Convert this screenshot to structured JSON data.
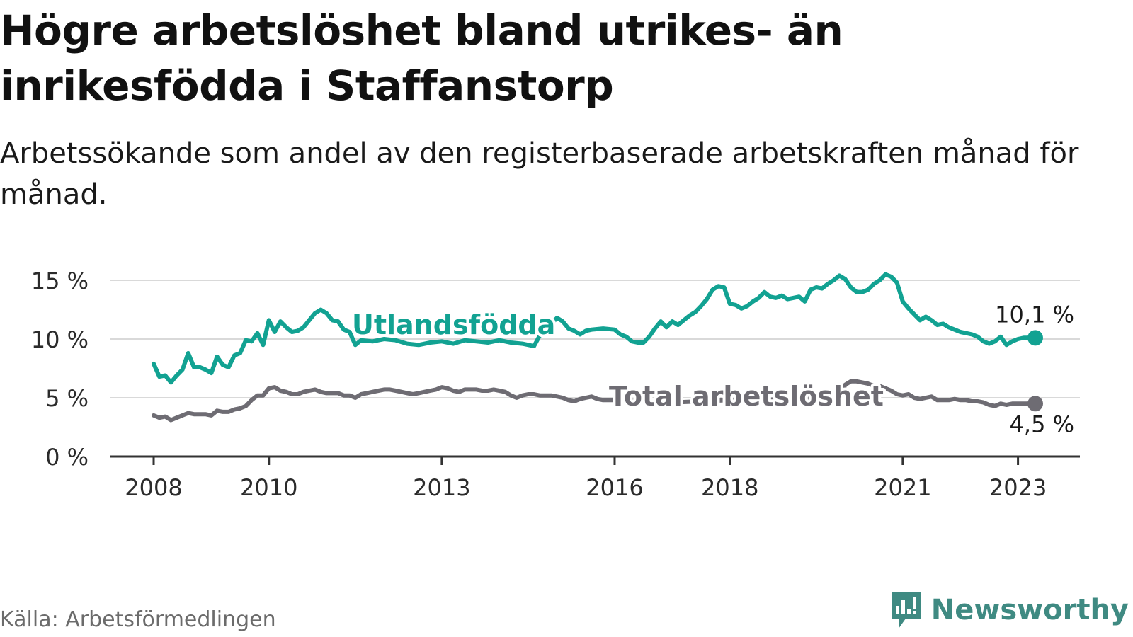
{
  "title": "Högre arbetslöshet bland utrikes- än inrikesfödda i Staffanstorp",
  "subtitle": "Arbetssökande som andel av den registerbaserade arbetskraften månad för månad.",
  "source": "Källa: Arbetsförmedlingen",
  "brand": "Newsworthy",
  "colors": {
    "utlandsfodda": "#12a292",
    "total": "#6e6c73",
    "grid": "#d9d9d9",
    "axis": "#333333"
  },
  "chart_data": {
    "type": "line",
    "xlim": [
      2008.0,
      2023.3
    ],
    "ylim": [
      0,
      15
    ],
    "y_ticks": [
      {
        "value": 0,
        "label": "0 %"
      },
      {
        "value": 5,
        "label": "5 %"
      },
      {
        "value": 10,
        "label": "10 %"
      },
      {
        "value": 15,
        "label": "15 %"
      }
    ],
    "x_ticks": [
      {
        "value": 2008,
        "label": "2008"
      },
      {
        "value": 2010,
        "label": "2010"
      },
      {
        "value": 2013,
        "label": "2013"
      },
      {
        "value": 2016,
        "label": "2016"
      },
      {
        "value": 2018,
        "label": "2018"
      },
      {
        "value": 2021,
        "label": "2021"
      },
      {
        "value": 2023,
        "label": "2023"
      }
    ],
    "grid": true,
    "series": [
      {
        "name": "Utlandsfödda",
        "end_label": "10,1 %",
        "points": [
          [
            2008.0,
            7.9
          ],
          [
            2008.1,
            6.8
          ],
          [
            2008.2,
            6.9
          ],
          [
            2008.3,
            6.3
          ],
          [
            2008.4,
            6.9
          ],
          [
            2008.5,
            7.4
          ],
          [
            2008.6,
            8.8
          ],
          [
            2008.7,
            7.6
          ],
          [
            2008.8,
            7.6
          ],
          [
            2008.9,
            7.4
          ],
          [
            2009.0,
            7.1
          ],
          [
            2009.1,
            8.5
          ],
          [
            2009.2,
            7.8
          ],
          [
            2009.3,
            7.6
          ],
          [
            2009.4,
            8.6
          ],
          [
            2009.5,
            8.8
          ],
          [
            2009.6,
            9.9
          ],
          [
            2009.7,
            9.8
          ],
          [
            2009.8,
            10.5
          ],
          [
            2009.9,
            9.5
          ],
          [
            2010.0,
            11.6
          ],
          [
            2010.1,
            10.6
          ],
          [
            2010.2,
            11.5
          ],
          [
            2010.3,
            11.0
          ],
          [
            2010.4,
            10.6
          ],
          [
            2010.5,
            10.7
          ],
          [
            2010.6,
            11.0
          ],
          [
            2010.7,
            11.6
          ],
          [
            2010.8,
            12.2
          ],
          [
            2010.9,
            12.5
          ],
          [
            2011.0,
            12.2
          ],
          [
            2011.1,
            11.6
          ],
          [
            2011.2,
            11.5
          ],
          [
            2011.3,
            10.8
          ],
          [
            2011.4,
            10.6
          ],
          [
            2011.5,
            9.5
          ],
          [
            2011.6,
            9.9
          ],
          [
            2011.8,
            9.8
          ],
          [
            2012.0,
            10.0
          ],
          [
            2012.2,
            9.9
          ],
          [
            2012.4,
            9.6
          ],
          [
            2012.6,
            9.5
          ],
          [
            2012.8,
            9.7
          ],
          [
            2013.0,
            9.8
          ],
          [
            2013.2,
            9.6
          ],
          [
            2013.4,
            9.9
          ],
          [
            2013.6,
            9.8
          ],
          [
            2013.8,
            9.7
          ],
          [
            2014.0,
            9.9
          ],
          [
            2014.2,
            9.7
          ],
          [
            2014.4,
            9.6
          ],
          [
            2014.6,
            9.4
          ],
          [
            2014.8,
            11.2
          ],
          [
            2014.9,
            11.3
          ],
          [
            2015.0,
            11.8
          ],
          [
            2015.1,
            11.5
          ],
          [
            2015.2,
            10.9
          ],
          [
            2015.3,
            10.7
          ],
          [
            2015.4,
            10.4
          ],
          [
            2015.5,
            10.7
          ],
          [
            2015.6,
            10.8
          ],
          [
            2015.8,
            10.9
          ],
          [
            2016.0,
            10.8
          ],
          [
            2016.1,
            10.4
          ],
          [
            2016.2,
            10.2
          ],
          [
            2016.3,
            9.8
          ],
          [
            2016.4,
            9.7
          ],
          [
            2016.5,
            9.7
          ],
          [
            2016.6,
            10.2
          ],
          [
            2016.7,
            10.9
          ],
          [
            2016.8,
            11.5
          ],
          [
            2016.9,
            11.0
          ],
          [
            2017.0,
            11.5
          ],
          [
            2017.1,
            11.2
          ],
          [
            2017.2,
            11.6
          ],
          [
            2017.3,
            12.0
          ],
          [
            2017.4,
            12.3
          ],
          [
            2017.5,
            12.8
          ],
          [
            2017.6,
            13.4
          ],
          [
            2017.7,
            14.2
          ],
          [
            2017.8,
            14.5
          ],
          [
            2017.9,
            14.4
          ],
          [
            2018.0,
            13.0
          ],
          [
            2018.1,
            12.9
          ],
          [
            2018.2,
            12.6
          ],
          [
            2018.3,
            12.8
          ],
          [
            2018.4,
            13.2
          ],
          [
            2018.5,
            13.5
          ],
          [
            2018.6,
            14.0
          ],
          [
            2018.7,
            13.6
          ],
          [
            2018.8,
            13.5
          ],
          [
            2018.9,
            13.7
          ],
          [
            2019.0,
            13.4
          ],
          [
            2019.1,
            13.5
          ],
          [
            2019.2,
            13.6
          ],
          [
            2019.3,
            13.2
          ],
          [
            2019.4,
            14.2
          ],
          [
            2019.5,
            14.4
          ],
          [
            2019.6,
            14.3
          ],
          [
            2019.7,
            14.7
          ],
          [
            2019.8,
            15.0
          ],
          [
            2019.9,
            15.4
          ],
          [
            2020.0,
            15.1
          ],
          [
            2020.1,
            14.4
          ],
          [
            2020.2,
            14.0
          ],
          [
            2020.3,
            14.0
          ],
          [
            2020.4,
            14.2
          ],
          [
            2020.5,
            14.7
          ],
          [
            2020.6,
            15.0
          ],
          [
            2020.7,
            15.5
          ],
          [
            2020.8,
            15.3
          ],
          [
            2020.9,
            14.8
          ],
          [
            2021.0,
            13.2
          ],
          [
            2021.1,
            12.6
          ],
          [
            2021.2,
            12.1
          ],
          [
            2021.3,
            11.6
          ],
          [
            2021.4,
            11.9
          ],
          [
            2021.5,
            11.6
          ],
          [
            2021.6,
            11.2
          ],
          [
            2021.7,
            11.3
          ],
          [
            2021.8,
            11.0
          ],
          [
            2021.9,
            10.8
          ],
          [
            2022.0,
            10.6
          ],
          [
            2022.1,
            10.5
          ],
          [
            2022.2,
            10.4
          ],
          [
            2022.3,
            10.2
          ],
          [
            2022.4,
            9.8
          ],
          [
            2022.5,
            9.6
          ],
          [
            2022.6,
            9.8
          ],
          [
            2022.7,
            10.2
          ],
          [
            2022.8,
            9.5
          ],
          [
            2022.9,
            9.8
          ],
          [
            2023.0,
            10.0
          ],
          [
            2023.1,
            10.1
          ],
          [
            2023.2,
            10.1
          ],
          [
            2023.3,
            10.1
          ]
        ]
      },
      {
        "name": "Total arbetslöshet",
        "end_label": "4,5 %",
        "points": [
          [
            2008.0,
            3.5
          ],
          [
            2008.1,
            3.3
          ],
          [
            2008.2,
            3.4
          ],
          [
            2008.3,
            3.1
          ],
          [
            2008.4,
            3.3
          ],
          [
            2008.5,
            3.5
          ],
          [
            2008.6,
            3.7
          ],
          [
            2008.7,
            3.6
          ],
          [
            2008.8,
            3.6
          ],
          [
            2008.9,
            3.6
          ],
          [
            2009.0,
            3.5
          ],
          [
            2009.1,
            3.9
          ],
          [
            2009.2,
            3.8
          ],
          [
            2009.3,
            3.8
          ],
          [
            2009.4,
            4.0
          ],
          [
            2009.5,
            4.1
          ],
          [
            2009.6,
            4.3
          ],
          [
            2009.7,
            4.8
          ],
          [
            2009.8,
            5.2
          ],
          [
            2009.9,
            5.2
          ],
          [
            2010.0,
            5.8
          ],
          [
            2010.1,
            5.9
          ],
          [
            2010.2,
            5.6
          ],
          [
            2010.3,
            5.5
          ],
          [
            2010.4,
            5.3
          ],
          [
            2010.5,
            5.3
          ],
          [
            2010.6,
            5.5
          ],
          [
            2010.7,
            5.6
          ],
          [
            2010.8,
            5.7
          ],
          [
            2010.9,
            5.5
          ],
          [
            2011.0,
            5.4
          ],
          [
            2011.1,
            5.4
          ],
          [
            2011.2,
            5.4
          ],
          [
            2011.3,
            5.2
          ],
          [
            2011.4,
            5.2
          ],
          [
            2011.5,
            5.0
          ],
          [
            2011.6,
            5.3
          ],
          [
            2011.7,
            5.4
          ],
          [
            2011.8,
            5.5
          ],
          [
            2011.9,
            5.6
          ],
          [
            2012.0,
            5.7
          ],
          [
            2012.1,
            5.7
          ],
          [
            2012.2,
            5.6
          ],
          [
            2012.3,
            5.5
          ],
          [
            2012.4,
            5.4
          ],
          [
            2012.5,
            5.3
          ],
          [
            2012.6,
            5.4
          ],
          [
            2012.7,
            5.5
          ],
          [
            2012.8,
            5.6
          ],
          [
            2012.9,
            5.7
          ],
          [
            2013.0,
            5.9
          ],
          [
            2013.1,
            5.8
          ],
          [
            2013.2,
            5.6
          ],
          [
            2013.3,
            5.5
          ],
          [
            2013.4,
            5.7
          ],
          [
            2013.5,
            5.7
          ],
          [
            2013.6,
            5.7
          ],
          [
            2013.7,
            5.6
          ],
          [
            2013.8,
            5.6
          ],
          [
            2013.9,
            5.7
          ],
          [
            2014.0,
            5.6
          ],
          [
            2014.1,
            5.5
          ],
          [
            2014.2,
            5.2
          ],
          [
            2014.3,
            5.0
          ],
          [
            2014.4,
            5.2
          ],
          [
            2014.5,
            5.3
          ],
          [
            2014.6,
            5.3
          ],
          [
            2014.7,
            5.2
          ],
          [
            2014.8,
            5.2
          ],
          [
            2014.9,
            5.2
          ],
          [
            2015.0,
            5.1
          ],
          [
            2015.1,
            5.0
          ],
          [
            2015.2,
            4.8
          ],
          [
            2015.3,
            4.7
          ],
          [
            2015.4,
            4.9
          ],
          [
            2015.5,
            5.0
          ],
          [
            2015.6,
            5.1
          ],
          [
            2015.7,
            4.9
          ],
          [
            2015.8,
            4.8
          ],
          [
            2015.9,
            4.8
          ],
          [
            2016.0,
            4.8
          ],
          [
            2016.5,
            4.7
          ],
          [
            2017.0,
            4.6
          ],
          [
            2017.5,
            4.7
          ],
          [
            2018.0,
            4.8
          ],
          [
            2018.5,
            4.8
          ],
          [
            2019.0,
            4.9
          ],
          [
            2019.5,
            5.0
          ],
          [
            2019.9,
            4.9
          ],
          [
            2020.0,
            6.1
          ],
          [
            2020.1,
            6.4
          ],
          [
            2020.2,
            6.4
          ],
          [
            2020.3,
            6.3
          ],
          [
            2020.4,
            6.2
          ],
          [
            2020.5,
            6.0
          ],
          [
            2020.6,
            6.0
          ],
          [
            2020.7,
            5.8
          ],
          [
            2020.8,
            5.6
          ],
          [
            2020.9,
            5.3
          ],
          [
            2021.0,
            5.2
          ],
          [
            2021.1,
            5.3
          ],
          [
            2021.2,
            5.0
          ],
          [
            2021.3,
            4.9
          ],
          [
            2021.4,
            5.0
          ],
          [
            2021.5,
            5.1
          ],
          [
            2021.6,
            4.8
          ],
          [
            2021.7,
            4.8
          ],
          [
            2021.8,
            4.8
          ],
          [
            2021.9,
            4.9
          ],
          [
            2022.0,
            4.8
          ],
          [
            2022.1,
            4.8
          ],
          [
            2022.2,
            4.7
          ],
          [
            2022.3,
            4.7
          ],
          [
            2022.4,
            4.6
          ],
          [
            2022.5,
            4.4
          ],
          [
            2022.6,
            4.3
          ],
          [
            2022.7,
            4.5
          ],
          [
            2022.8,
            4.4
          ],
          [
            2022.9,
            4.5
          ],
          [
            2023.0,
            4.5
          ],
          [
            2023.1,
            4.5
          ],
          [
            2023.2,
            4.5
          ],
          [
            2023.3,
            4.5
          ]
        ]
      }
    ]
  }
}
